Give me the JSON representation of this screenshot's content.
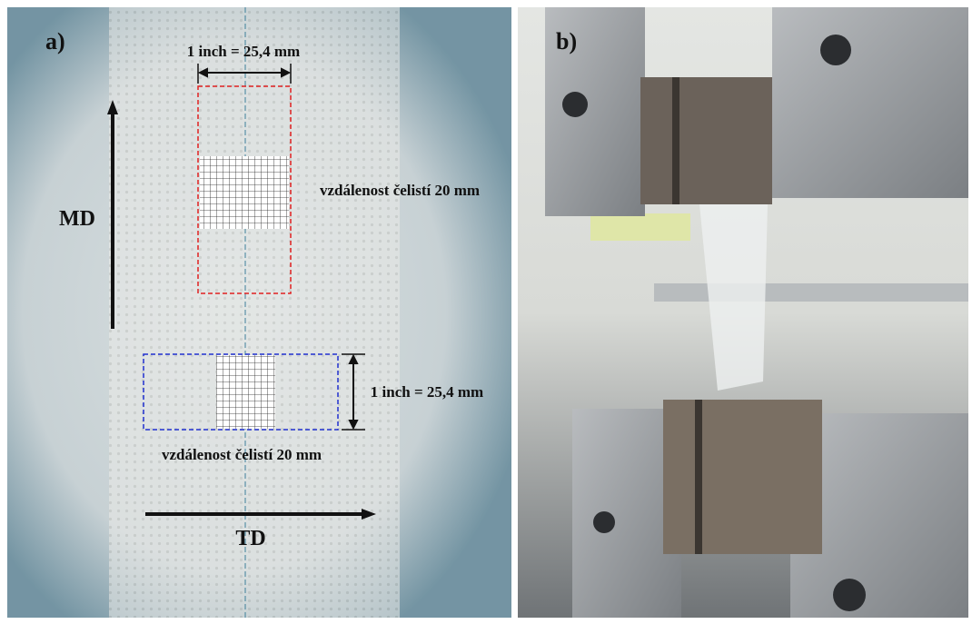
{
  "panel_a": {
    "label": "a)",
    "width_label_top": "1 inch = 25,4 mm",
    "gauge_label_md": "vzdálenost čelistí 20 mm",
    "width_label_right": "1 inch = 25,4 mm",
    "gauge_label_td": "vzdálenost čelistí 20 mm",
    "md_label": "MD",
    "td_label": "TD"
  },
  "panel_b": {
    "label": "b)"
  }
}
